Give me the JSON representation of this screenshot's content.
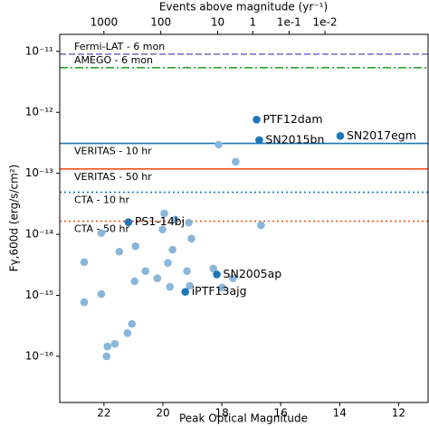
{
  "chart_data": {
    "type": "scatter",
    "xlabel": "Peak Optical Magnitude",
    "ylabel": "Fγ,600d (erg/s/cm²)",
    "x2label": "Events above magnitude (yr⁻¹)",
    "xlim": [
      23.5,
      11.0
    ],
    "xticks": [
      22,
      20,
      18,
      16,
      14,
      12
    ],
    "x2ticks": [
      {
        "value": 22.0,
        "label": "1000"
      },
      {
        "value": 20.07,
        "label": "100"
      },
      {
        "value": 18.14,
        "label": "10"
      },
      {
        "value": 16.95,
        "label": "1"
      },
      {
        "value": 15.72,
        "label": "1e-1"
      },
      {
        "value": 14.5,
        "label": "1e-2"
      }
    ],
    "ylog": true,
    "ylim": [
      1.75e-17,
      1.9e-11
    ],
    "yticks": [
      {
        "value": 1e-16,
        "label": "10⁻¹⁶"
      },
      {
        "value": 1e-15,
        "label": "10⁻¹⁵"
      },
      {
        "value": 1e-14,
        "label": "10⁻¹⁴"
      },
      {
        "value": 1e-13,
        "label": "10⁻¹³"
      },
      {
        "value": 1e-12,
        "label": "10⁻¹²"
      },
      {
        "value": 1e-11,
        "label": "10⁻¹¹"
      }
    ],
    "hlines": [
      {
        "name": "Fermi-LAT - 6 mon",
        "value": 9e-12,
        "color": "#7467c0",
        "style": "dashed"
      },
      {
        "name": "AMEGO - 6 mon",
        "value": 5.4e-12,
        "color": "#2ca02c",
        "style": "dashdot"
      },
      {
        "name": "VERITAS - 10 hr",
        "value": 3.1e-13,
        "color": "#1f77b4",
        "style": "solid"
      },
      {
        "name": "VERITAS - 50 hr",
        "value": 1.18e-13,
        "color": "#f4511e",
        "style": "solid"
      },
      {
        "name": "CTA - 10 hr",
        "value": 4.9e-14,
        "color": "#1f77b4",
        "style": "dotted"
      },
      {
        "name": "CTA - 50 hr",
        "value": 1.64e-14,
        "color": "#f4511e",
        "style": "dotted"
      }
    ],
    "points": {
      "color": "#8ab6da",
      "x": [
        18.11,
        17.53,
        19.95,
        19.58,
        19.12,
        20.01,
        16.67,
        19.03,
        19.67,
        20.93,
        22.09,
        21.48,
        19.83,
        20.59,
        19.18,
        20.96,
        18.29,
        17.99,
        17.62,
        20.19,
        22.67,
        19.76,
        19.09,
        22.09,
        22.67,
        21.05,
        21.2,
        21.63,
        21.88,
        21.91
      ],
      "y": [
        2.96e-13,
        1.55e-13,
        2.2e-14,
        1.74e-14,
        1.56e-14,
        1.2e-14,
        1.41e-14,
        8.5e-15,
        5.6e-15,
        6.4e-15,
        1.05e-14,
        5.2e-15,
        3.4e-15,
        2.5e-15,
        2.5e-15,
        1.7e-15,
        2.75e-15,
        1.34e-15,
        1.9e-15,
        1.9e-15,
        3.5e-15,
        1.38e-15,
        1.44e-15,
        1.05e-15,
        7.7e-16,
        3.4e-16,
        2.4e-16,
        1.6e-16,
        1.45e-16,
        1e-16
      ]
    },
    "labeled_points": {
      "color": "#1f77b4",
      "labels": [
        "PTF12dam",
        "SN2015bn",
        "SN2017egm",
        "PS1-14bj",
        "SN2005ap",
        "iPTF13ajg"
      ],
      "x": [
        16.82,
        16.73,
        13.98,
        21.17,
        18.17,
        19.24
      ],
      "y": [
        7.6e-13,
        3.5e-13,
        4.1e-13,
        1.58e-14,
        2.2e-15,
        1.14e-15
      ]
    }
  }
}
